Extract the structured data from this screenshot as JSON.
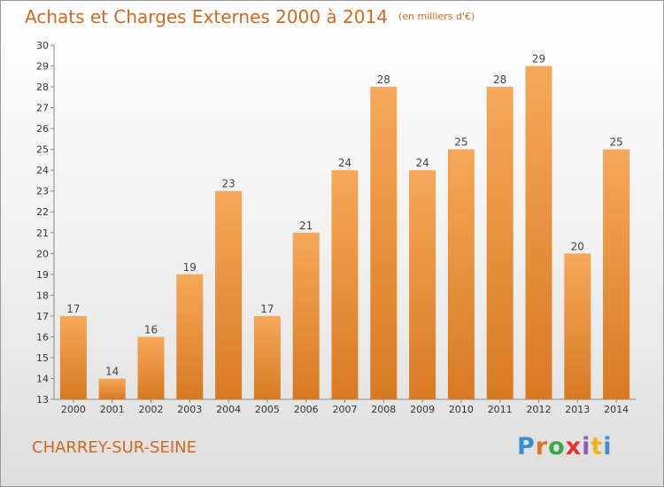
{
  "title": "Achats et Charges Externes 2000 à 2014",
  "unit_note": "(en milliers d'€)",
  "commune": "CHARREY-SUR-SEINE",
  "logo": {
    "text": "Proxiti",
    "letter_colors": [
      "#3a8fd0",
      "#e8731c",
      "#3aa84b",
      "#e2342f",
      "#9b59b6",
      "#f0b418",
      "#3a8fd0"
    ]
  },
  "colors": {
    "title": "#d2691e",
    "bar_light": "#f6a85a",
    "bar_dark": "#d87a22"
  },
  "chart_data": {
    "type": "bar",
    "title": "Achats et Charges Externes 2000 à 2014",
    "subtitle": "(en milliers d'€)",
    "categories": [
      "2000",
      "2001",
      "2002",
      "2003",
      "2004",
      "2005",
      "2006",
      "2007",
      "2008",
      "2009",
      "2010",
      "2011",
      "2012",
      "2013",
      "2014"
    ],
    "values": [
      17,
      14,
      16,
      19,
      23,
      17,
      21,
      24,
      28,
      24,
      25,
      28,
      29,
      20,
      25
    ],
    "ylim": [
      13,
      30
    ],
    "yticks": [
      13,
      14,
      15,
      16,
      17,
      18,
      19,
      20,
      21,
      22,
      23,
      24,
      25,
      26,
      27,
      28,
      29,
      30
    ],
    "grid": false,
    "legend": "none"
  }
}
